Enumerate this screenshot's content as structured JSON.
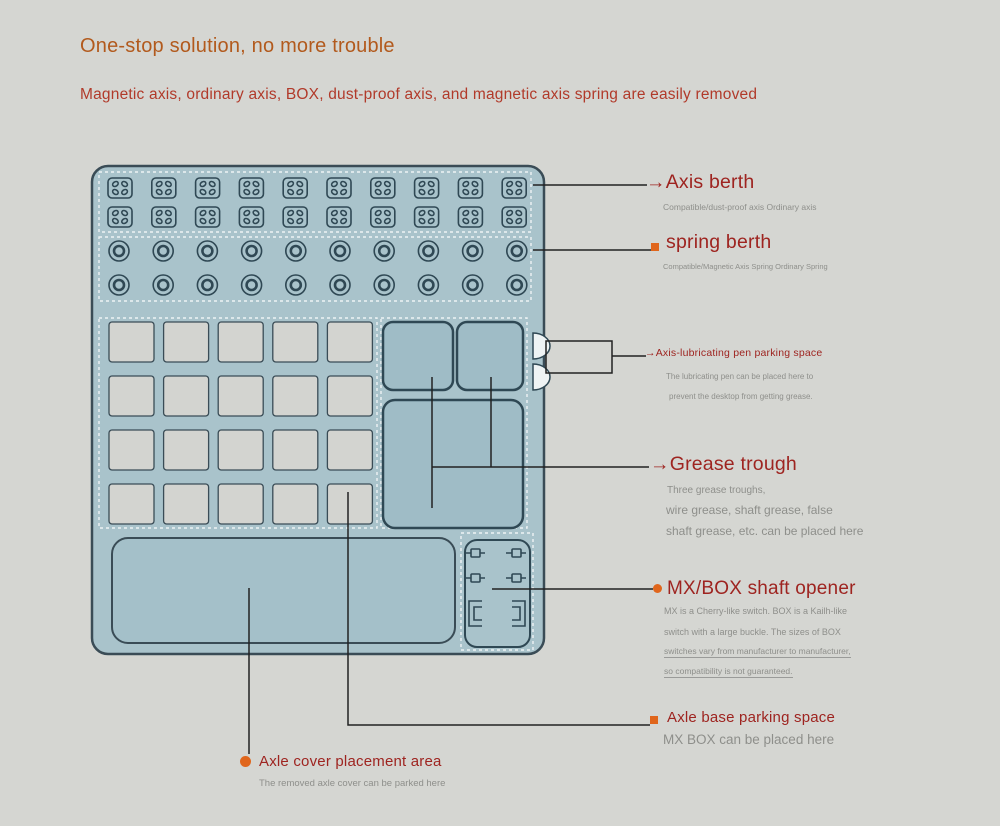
{
  "colors": {
    "background": "#d5d6d2",
    "title_orange": "#b25a1d",
    "subtitle_red": "#b13a2a",
    "heading_red": "#9e2420",
    "accent_orange": "#e0661c",
    "body_text_gray": "#8e8f8b",
    "line_dark": "#222222",
    "device_fill": "#a9c3cb",
    "device_stroke": "#3a4c56",
    "slot_stroke": "#2f4854",
    "panel_fill": "#9fbcc6",
    "white_slot": "#d3d4d0",
    "dash_white": "#eef3f4",
    "tray_fill": "#a4c0c9"
  },
  "header": {
    "title": "One-stop solution, no more trouble",
    "subtitle": "Magnetic axis, ordinary axis, BOX, dust-proof axis, and magnetic axis spring are easily removed"
  },
  "callouts": {
    "axis_berth": {
      "arrow": "→",
      "title": "Axis berth",
      "sub": "Compatible/dust-proof axis Ordinary axis"
    },
    "spring_berth": {
      "title": "spring berth",
      "sub": "Compatible/Magnetic Axis Spring Ordinary Spring"
    },
    "pen_parking": {
      "arrow": "→",
      "title": "Axis-lubricating pen parking space",
      "sub1": "The lubricating pen can be placed here to",
      "sub2": "prevent the desktop from getting grease."
    },
    "grease_trough": {
      "arrow": "→",
      "title": "Grease trough",
      "sub1": "Three grease troughs,",
      "sub2": "wire grease, shaft grease, false",
      "sub3": "shaft grease, etc. can be placed here"
    },
    "shaft_opener": {
      "title": "MX/BOX shaft opener",
      "sub1": "MX is a Cherry-like switch. BOX is a Kailh-like",
      "sub2": "switch with a large buckle. The sizes of BOX",
      "sub3": "switches vary from manufacturer to manufacturer,",
      "sub4": "so compatibility is not guaranteed."
    },
    "axle_base": {
      "title": "Axle base parking space",
      "sub": "MX BOX can be placed here"
    },
    "axle_cover": {
      "title": "Axle cover placement area",
      "sub": "The removed axle cover can be parked here"
    }
  }
}
